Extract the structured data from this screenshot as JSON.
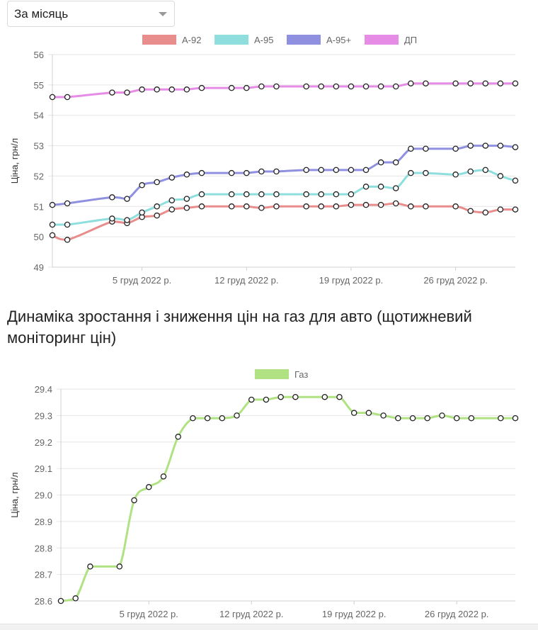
{
  "controls": {
    "period_select": "За місяць"
  },
  "section": {
    "gas_title": "Динаміка зростання і зниження цін на газ для авто (щотижневий моніторинг цін)"
  },
  "chart_data": [
    {
      "type": "line",
      "ylabel": "Ціна, грн/л",
      "ylim": [
        49,
        56
      ],
      "yticks": [
        49,
        50,
        51,
        52,
        53,
        54,
        55,
        56
      ],
      "x_range": [
        "2022-11-29",
        "2022-12-30"
      ],
      "xticks": [
        {
          "date": "2022-12-05",
          "label": "5 груд 2022 р."
        },
        {
          "date": "2022-12-12",
          "label": "12 груд 2022 р."
        },
        {
          "date": "2022-12-19",
          "label": "19 груд 2022 р."
        },
        {
          "date": "2022-12-26",
          "label": "26 груд 2022 р."
        }
      ],
      "grid": true,
      "legend_position": "top",
      "x": [
        "2022-11-29",
        "2022-11-30",
        "2022-12-03",
        "2022-12-04",
        "2022-12-05",
        "2022-12-06",
        "2022-12-07",
        "2022-12-08",
        "2022-12-09",
        "2022-12-11",
        "2022-12-12",
        "2022-12-13",
        "2022-12-14",
        "2022-12-16",
        "2022-12-17",
        "2022-12-18",
        "2022-12-19",
        "2022-12-20",
        "2022-12-21",
        "2022-12-22",
        "2022-12-23",
        "2022-12-24",
        "2022-12-26",
        "2022-12-27",
        "2022-12-28",
        "2022-12-29",
        "2022-12-30"
      ],
      "series": [
        {
          "name": "А-92",
          "color": "#e88c8c",
          "values": [
            50.05,
            49.9,
            50.5,
            50.45,
            50.65,
            50.7,
            50.9,
            50.95,
            51.0,
            51.0,
            51.0,
            50.95,
            51.0,
            51.0,
            51.0,
            51.0,
            51.05,
            51.05,
            51.05,
            51.1,
            51.0,
            51.0,
            51.0,
            50.85,
            50.8,
            50.9,
            50.9
          ]
        },
        {
          "name": "А-95",
          "color": "#8fdede",
          "values": [
            50.4,
            50.4,
            50.6,
            50.55,
            50.8,
            51.0,
            51.2,
            51.25,
            51.4,
            51.4,
            51.4,
            51.4,
            51.4,
            51.4,
            51.4,
            51.4,
            51.4,
            51.65,
            51.65,
            51.6,
            52.1,
            52.1,
            52.05,
            52.15,
            52.2,
            52.0,
            51.85
          ]
        },
        {
          "name": "А-95+",
          "color": "#9090e0",
          "values": [
            51.05,
            51.1,
            51.3,
            51.25,
            51.7,
            51.8,
            51.95,
            52.05,
            52.1,
            52.1,
            52.1,
            52.15,
            52.15,
            52.2,
            52.2,
            52.2,
            52.2,
            52.2,
            52.45,
            52.45,
            52.9,
            52.9,
            52.9,
            53.0,
            53.0,
            53.0,
            52.95
          ]
        },
        {
          "name": "ДП",
          "color": "#e68ce6",
          "values": [
            54.6,
            54.6,
            54.75,
            54.75,
            54.85,
            54.85,
            54.85,
            54.85,
            54.9,
            54.9,
            54.9,
            54.95,
            54.95,
            54.95,
            54.95,
            54.95,
            54.95,
            54.95,
            54.95,
            54.95,
            55.05,
            55.05,
            55.05,
            55.05,
            55.05,
            55.05,
            55.05
          ]
        }
      ]
    },
    {
      "type": "line",
      "ylabel": "Ціна, грн/л",
      "ylim": [
        28.6,
        29.4
      ],
      "yticks": [
        "28.6",
        "28.7",
        "28.8",
        "28.9",
        "29.0",
        "29.1",
        "29.2",
        "29.3",
        "29.4"
      ],
      "x_range": [
        "2022-11-29",
        "2022-12-30"
      ],
      "xticks": [
        {
          "date": "2022-12-05",
          "label": "5 груд 2022 р."
        },
        {
          "date": "2022-12-12",
          "label": "12 груд 2022 р."
        },
        {
          "date": "2022-12-19",
          "label": "19 груд 2022 р."
        },
        {
          "date": "2022-12-26",
          "label": "26 груд 2022 р."
        }
      ],
      "grid": true,
      "legend_position": "top",
      "x": [
        "2022-11-29",
        "2022-11-30",
        "2022-12-01",
        "2022-12-02",
        "2022-12-03",
        "2022-12-04",
        "2022-12-05",
        "2022-12-06",
        "2022-12-07",
        "2022-12-08",
        "2022-12-09",
        "2022-12-10",
        "2022-12-11",
        "2022-12-12",
        "2022-12-13",
        "2022-12-14",
        "2022-12-15",
        "2022-12-16",
        "2022-12-17",
        "2022-12-18",
        "2022-12-19",
        "2022-12-20",
        "2022-12-21",
        "2022-12-22",
        "2022-12-23",
        "2022-12-24",
        "2022-12-25",
        "2022-12-26",
        "2022-12-27",
        "2022-12-28",
        "2022-12-29",
        "2022-12-30"
      ],
      "series": [
        {
          "name": "Газ",
          "color": "#b0e283",
          "values": [
            28.6,
            28.61,
            28.73,
            28.73,
            28.73,
            28.98,
            29.03,
            29.07,
            29.22,
            29.29,
            29.29,
            29.29,
            29.3,
            29.36,
            29.36,
            29.37,
            29.37,
            29.37,
            29.37,
            29.37,
            29.31,
            29.31,
            29.3,
            29.29,
            29.29,
            29.29,
            29.3,
            29.29,
            29.29,
            29.29,
            29.29,
            29.29
          ]
        }
      ]
    }
  ]
}
